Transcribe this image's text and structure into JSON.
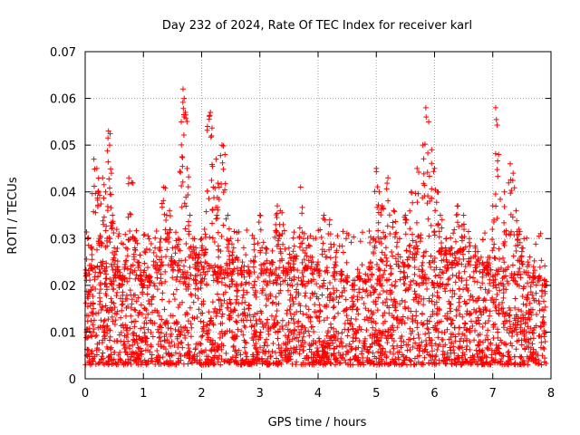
{
  "chart_data": {
    "type": "scatter",
    "title": "Day 232 of 2024, Rate Of TEC Index for receiver karl",
    "xlabel": "GPS time / hours",
    "ylabel": "ROTI / TECUs",
    "xlim": [
      0,
      8
    ],
    "ylim": [
      0,
      0.07
    ],
    "xticks": [
      "0",
      "1",
      "2",
      "3",
      "4",
      "5",
      "6",
      "7",
      "8"
    ],
    "yticks": [
      "0",
      "0.01",
      "0.02",
      "0.03",
      "0.04",
      "0.05",
      "0.06",
      "0.07"
    ],
    "grid": true,
    "marker": "+",
    "color": "#ff0000",
    "series": [
      {
        "name": "ROTI",
        "note": "dense cloud of several thousand points; baseline mostly 0.003-0.025 TECU, spikes listed below",
        "x": [
          0.05,
          0.1,
          0.15,
          0.2,
          0.22,
          0.25,
          0.3,
          0.35,
          0.4,
          0.42,
          0.45,
          0.47,
          0.5,
          0.55,
          0.6,
          0.65,
          0.7,
          0.75,
          0.8,
          0.85,
          0.9,
          0.95,
          1.0,
          1.1,
          1.2,
          1.3,
          1.35,
          1.4,
          1.45,
          1.5,
          1.6,
          1.65,
          1.68,
          1.7,
          1.72,
          1.75,
          1.8,
          1.85,
          1.9,
          1.95,
          2.0,
          2.05,
          2.1,
          2.15,
          2.17,
          2.2,
          2.25,
          2.3,
          2.35,
          2.4,
          2.45,
          2.5,
          2.55,
          2.6,
          2.7,
          2.8,
          2.9,
          3.0,
          3.1,
          3.2,
          3.3,
          3.35,
          3.4,
          3.5,
          3.6,
          3.7,
          3.75,
          3.8,
          3.9,
          4.0,
          4.1,
          4.2,
          4.3,
          4.4,
          4.5,
          4.6,
          4.7,
          4.8,
          4.9,
          4.95,
          5.0,
          5.05,
          5.1,
          5.2,
          5.3,
          5.4,
          5.5,
          5.6,
          5.7,
          5.8,
          5.85,
          5.9,
          5.95,
          6.0,
          6.05,
          6.1,
          6.2,
          6.3,
          6.4,
          6.5,
          6.6,
          6.7,
          6.8,
          6.9,
          7.0,
          7.05,
          7.1,
          7.2,
          7.3,
          7.35,
          7.4,
          7.45,
          7.5,
          7.6,
          7.7,
          7.8,
          7.9
        ],
        "y": [
          0.018,
          0.028,
          0.047,
          0.045,
          0.04,
          0.03,
          0.043,
          0.04,
          0.053,
          0.05,
          0.044,
          0.035,
          0.028,
          0.024,
          0.02,
          0.022,
          0.028,
          0.043,
          0.042,
          0.03,
          0.025,
          0.022,
          0.02,
          0.022,
          0.028,
          0.03,
          0.041,
          0.035,
          0.036,
          0.028,
          0.03,
          0.055,
          0.062,
          0.06,
          0.057,
          0.045,
          0.035,
          0.03,
          0.028,
          0.026,
          0.03,
          0.032,
          0.054,
          0.057,
          0.052,
          0.041,
          0.047,
          0.041,
          0.05,
          0.048,
          0.035,
          0.03,
          0.028,
          0.026,
          0.025,
          0.024,
          0.03,
          0.035,
          0.028,
          0.025,
          0.037,
          0.036,
          0.033,
          0.028,
          0.026,
          0.041,
          0.03,
          0.028,
          0.026,
          0.025,
          0.035,
          0.034,
          0.025,
          0.023,
          0.022,
          0.02,
          0.022,
          0.021,
          0.025,
          0.03,
          0.045,
          0.04,
          0.037,
          0.043,
          0.036,
          0.03,
          0.035,
          0.04,
          0.045,
          0.05,
          0.058,
          0.055,
          0.049,
          0.045,
          0.04,
          0.035,
          0.03,
          0.028,
          0.037,
          0.035,
          0.03,
          0.028,
          0.026,
          0.025,
          0.037,
          0.058,
          0.048,
          0.04,
          0.046,
          0.044,
          0.036,
          0.032,
          0.028,
          0.025,
          0.024,
          0.022,
          0.02
        ]
      }
    ]
  }
}
